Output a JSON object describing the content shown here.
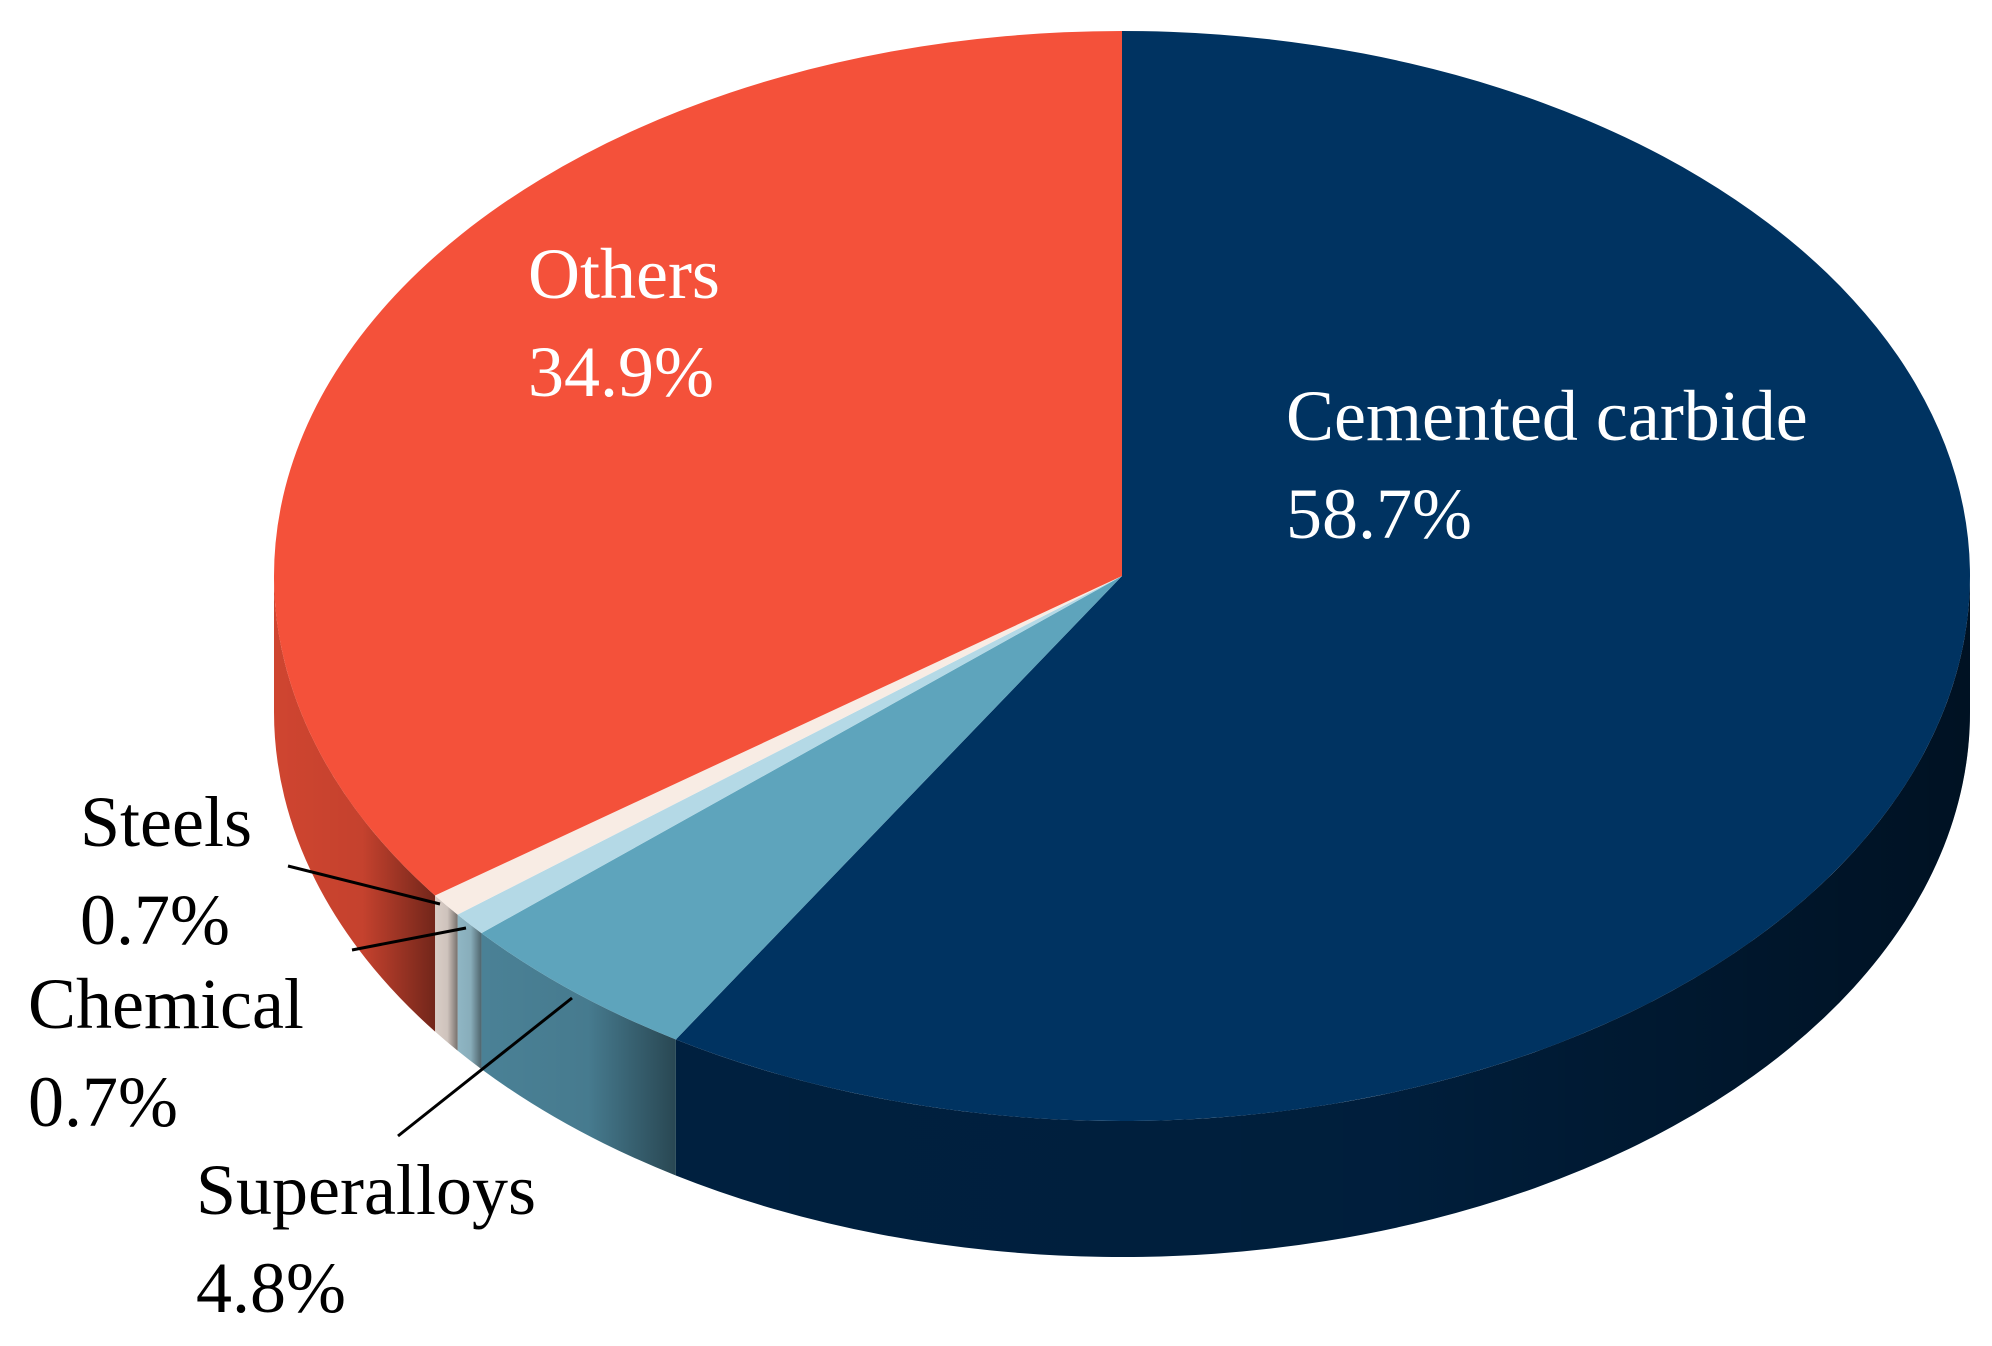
{
  "chart_data": {
    "type": "pie",
    "style": "3d",
    "title": "",
    "start_angle_deg": 0,
    "direction": "clockwise",
    "slices": [
      {
        "name": "Cemented carbide",
        "value": 58.7,
        "label": "58.7%",
        "color": "#003361",
        "side_color": "#00203f",
        "label_color": "#ffffff"
      },
      {
        "name": "Superalloys",
        "value": 4.8,
        "label": "4.8%",
        "color": "#5ea4bc",
        "side_color": "#4a8196",
        "label_color": "#000000"
      },
      {
        "name": "Chemical",
        "value": 0.7,
        "label": "0.7%",
        "color": "#b4d9e6",
        "side_color": "#8fb6c4",
        "label_color": "#000000"
      },
      {
        "name": "Steels",
        "value": 0.7,
        "label": "0.7%",
        "color": "#f8ece4",
        "side_color": "#d9cdc6",
        "label_color": "#000000"
      },
      {
        "name": "Others",
        "value": 34.9,
        "label": "34.9%",
        "color": "#f4513a",
        "side_color": "#cf4530",
        "label_color": "#ffffff"
      }
    ],
    "legend": "none"
  }
}
